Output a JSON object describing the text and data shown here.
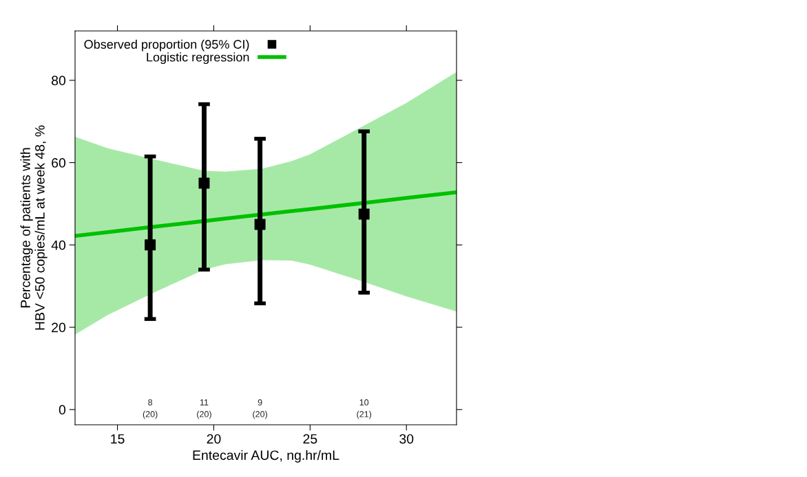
{
  "chart_data": {
    "type": "scatter",
    "xlabel": "Entecavir AUC, ng.hr/mL",
    "ylabel": "Percentage of patients with\nHBV <50 copies/mL at week 48, %",
    "xlim": [
      12.8,
      32.6
    ],
    "xticks": [
      15,
      20,
      25,
      30
    ],
    "ylim": [
      -3.7,
      92
    ],
    "yticks": [
      0,
      20,
      40,
      60,
      80
    ],
    "grid": false,
    "legend": "top left",
    "series": [
      {
        "name": "Logistic regression",
        "type": "line",
        "color": "#00c000",
        "marker": "none",
        "line_style": "solid",
        "x": [
          12.8,
          14.5,
          16.7,
          19.5,
          20.6,
          22.5,
          24,
          25,
          27.8,
          30,
          32.6
        ],
        "values": [
          42.2,
          43.1,
          44.3,
          45.8,
          46.4,
          47.4,
          48.2,
          48.7,
          50.2,
          51.4,
          52.8
        ],
        "lower": [
          18.2,
          23,
          28,
          34,
          35.3,
          36.3,
          36.2,
          35.2,
          31,
          27.5,
          23.8
        ],
        "upper": [
          66.3,
          63.5,
          61,
          58,
          57.8,
          58.5,
          60.3,
          62,
          69,
          74.5,
          82
        ]
      },
      {
        "name": "Observed proportion (95% CI)",
        "color": "#000000",
        "marker": "square",
        "x": [
          16.7,
          19.5,
          22.4,
          27.8
        ],
        "values": [
          40,
          55,
          45,
          47.5
        ],
        "errors": [
          [
            22,
            61.5
          ],
          [
            34,
            74.2
          ],
          [
            25.8,
            65.8
          ],
          [
            28.4,
            67.6
          ]
        ]
      }
    ],
    "annotations": [
      "8\n(20)",
      "11\n(20)",
      "9\n(20)",
      "10\n(21)"
    ]
  }
}
